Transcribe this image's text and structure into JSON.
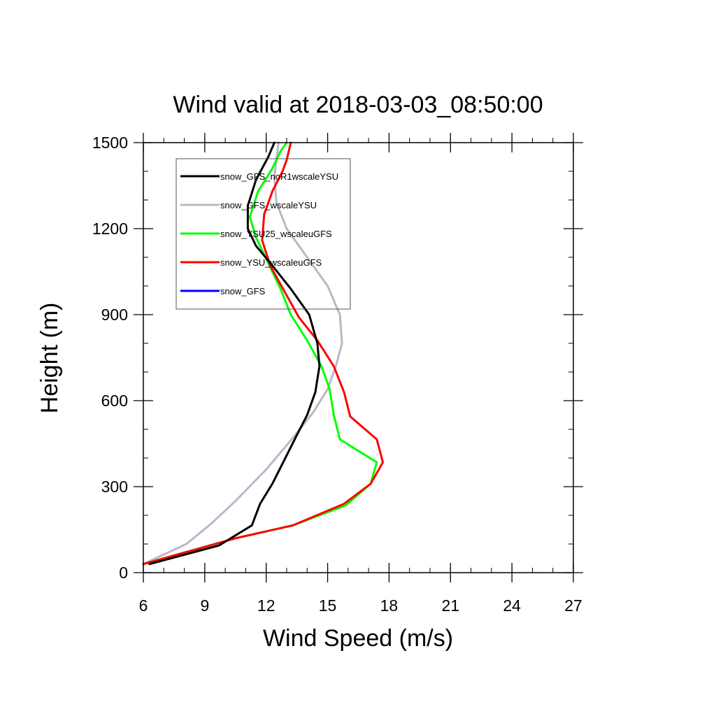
{
  "chart_data": {
    "type": "line",
    "title": "Wind valid at 2018-03-03_08:50:00",
    "xlabel": "Wind Speed (m/s)",
    "ylabel": "Height (m)",
    "xlim": [
      6,
      27
    ],
    "ylim": [
      0,
      1500
    ],
    "xticks": [
      6,
      9,
      12,
      15,
      18,
      21,
      24,
      27
    ],
    "yticks": [
      0,
      300,
      600,
      900,
      1200,
      1500
    ],
    "x_minor_step": 1,
    "y_minor_step": 100,
    "grid": false,
    "legend_position": "top-left",
    "series": [
      {
        "name": "snow_GFS_noR1wscaleYSU",
        "color": "#000000",
        "points": [
          [
            6.3,
            30
          ],
          [
            9.7,
            95
          ],
          [
            11.3,
            165
          ],
          [
            11.7,
            240
          ],
          [
            12.3,
            310
          ],
          [
            13.5,
            480
          ],
          [
            14.0,
            550
          ],
          [
            14.4,
            630
          ],
          [
            14.6,
            720
          ],
          [
            14.5,
            800
          ],
          [
            14.1,
            900
          ],
          [
            13.2,
            990
          ],
          [
            12.2,
            1080
          ],
          [
            11.5,
            1140
          ],
          [
            11.1,
            1200
          ],
          [
            11.1,
            1280
          ],
          [
            11.5,
            1370
          ],
          [
            12.1,
            1450
          ],
          [
            12.4,
            1500
          ]
        ]
      },
      {
        "name": "snow_GFS_wscaleYSU",
        "color": "#b8b8c8",
        "points": [
          [
            6.0,
            30
          ],
          [
            8.1,
            100
          ],
          [
            9.3,
            170
          ],
          [
            10.5,
            250
          ],
          [
            12.0,
            360
          ],
          [
            13.3,
            470
          ],
          [
            14.3,
            560
          ],
          [
            15.0,
            640
          ],
          [
            15.4,
            720
          ],
          [
            15.7,
            800
          ],
          [
            15.6,
            900
          ],
          [
            15.0,
            1000
          ],
          [
            14.0,
            1100
          ],
          [
            13.0,
            1200
          ],
          [
            12.5,
            1290
          ],
          [
            12.4,
            1380
          ],
          [
            12.6,
            1500
          ]
        ]
      },
      {
        "name": "snow_YSU25_wscaleuGFS",
        "color": "#00ff00",
        "points": [
          [
            6.0,
            30
          ],
          [
            8.0,
            70
          ],
          [
            10.5,
            120
          ],
          [
            13.3,
            165
          ],
          [
            15.9,
            235
          ],
          [
            17.1,
            310
          ],
          [
            17.4,
            385
          ],
          [
            15.6,
            465
          ],
          [
            15.3,
            550
          ],
          [
            15.1,
            640
          ],
          [
            14.7,
            720
          ],
          [
            14.0,
            810
          ],
          [
            13.2,
            900
          ],
          [
            12.7,
            990
          ],
          [
            12.1,
            1080
          ],
          [
            11.5,
            1170
          ],
          [
            11.2,
            1240
          ],
          [
            11.6,
            1330
          ],
          [
            12.3,
            1410
          ],
          [
            12.7,
            1470
          ],
          [
            13.0,
            1500
          ]
        ]
      },
      {
        "name": "snow_YSU_wscaleuGFS",
        "color": "#ff0000",
        "points": [
          [
            6.0,
            30
          ],
          [
            8.0,
            70
          ],
          [
            10.5,
            120
          ],
          [
            13.3,
            165
          ],
          [
            15.8,
            240
          ],
          [
            17.1,
            310
          ],
          [
            17.7,
            385
          ],
          [
            17.4,
            465
          ],
          [
            16.1,
            545
          ],
          [
            15.8,
            630
          ],
          [
            15.3,
            720
          ],
          [
            14.5,
            810
          ],
          [
            13.6,
            890
          ],
          [
            12.9,
            980
          ],
          [
            12.2,
            1070
          ],
          [
            11.8,
            1160
          ],
          [
            11.9,
            1250
          ],
          [
            12.3,
            1330
          ],
          [
            12.8,
            1400
          ],
          [
            13.0,
            1440
          ],
          [
            13.2,
            1500
          ]
        ]
      },
      {
        "name": "snow_GFS",
        "color": "#0000ff",
        "points": [
          [
            6.0,
            30
          ],
          [
            8.1,
            100
          ],
          [
            9.3,
            170
          ],
          [
            10.5,
            250
          ],
          [
            12.0,
            360
          ],
          [
            13.3,
            470
          ],
          [
            14.3,
            560
          ],
          [
            15.0,
            640
          ],
          [
            15.4,
            720
          ],
          [
            15.7,
            800
          ],
          [
            15.6,
            900
          ],
          [
            15.0,
            1000
          ],
          [
            14.0,
            1100
          ],
          [
            13.0,
            1200
          ],
          [
            12.5,
            1290
          ],
          [
            12.4,
            1380
          ],
          [
            12.6,
            1500
          ]
        ]
      }
    ]
  }
}
